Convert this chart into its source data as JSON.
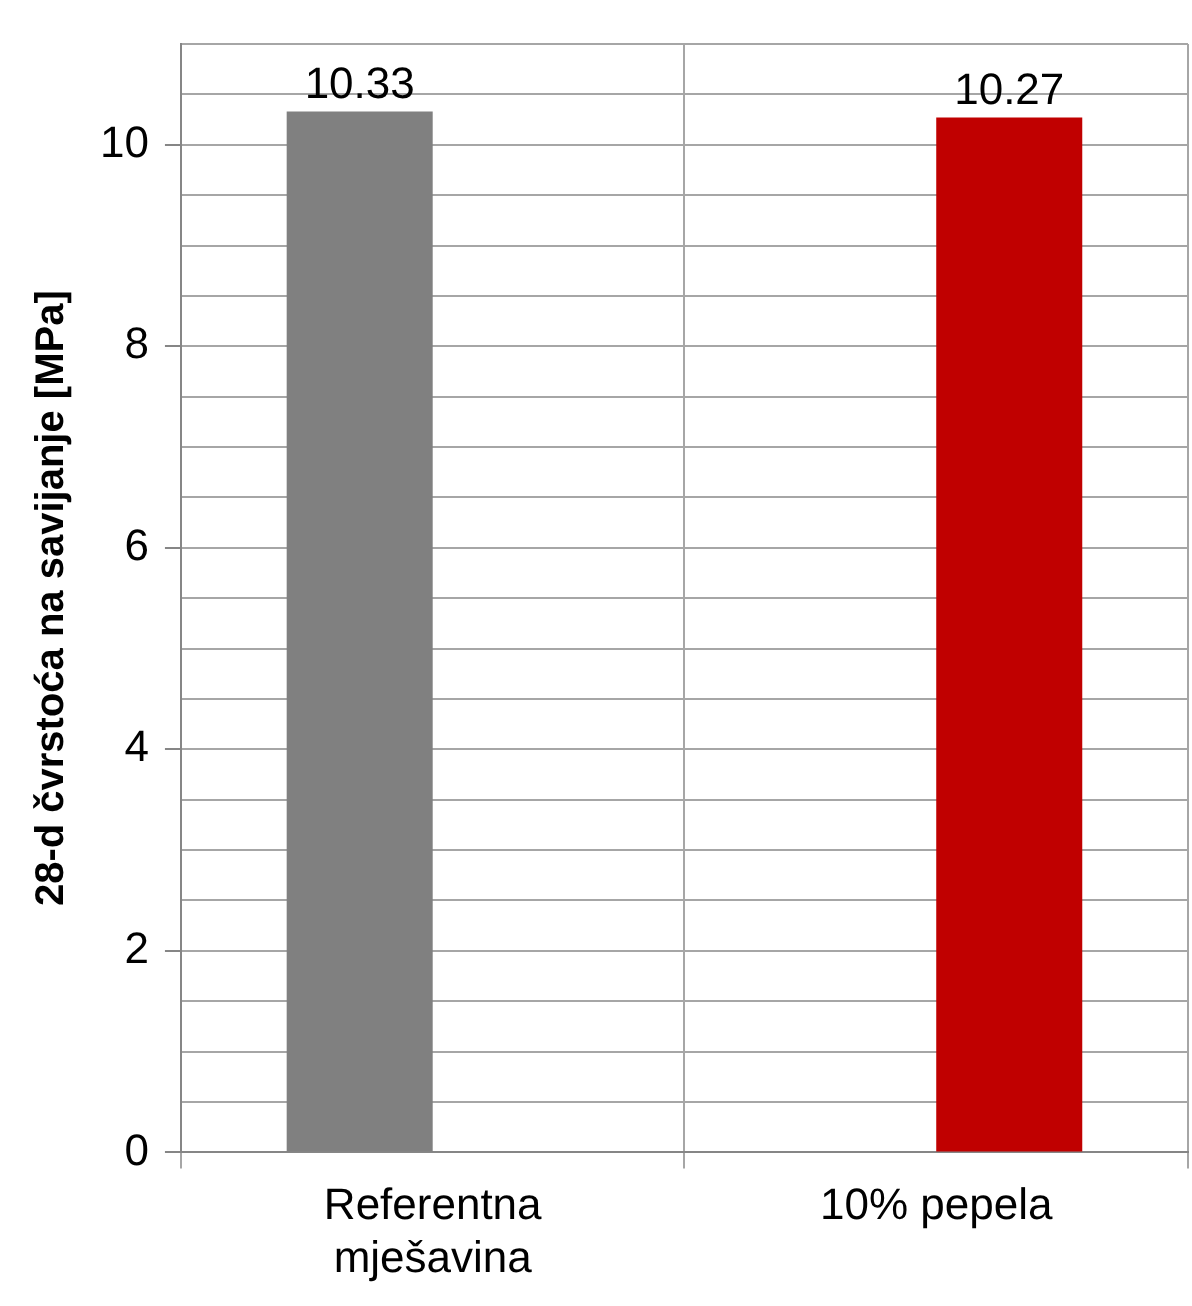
{
  "chart_data": {
    "type": "bar",
    "ylabel": "28-d čvrstoća na savijanje [MPa]",
    "categories": [
      "Referentna mješavina",
      "10% pepela"
    ],
    "series": [
      {
        "color": "#808080",
        "values": [
          10.33,
          null
        ]
      },
      {
        "color": "#c00000",
        "values": [
          null,
          10.27
        ]
      }
    ],
    "ylim": [
      0,
      11
    ],
    "yticks": [
      0,
      {
        "value": 0.5,
        "label": null
      },
      {
        "value": 1,
        "label": null
      },
      {
        "value": 1.5,
        "label": null
      },
      2,
      {
        "value": 2.5,
        "label": null
      },
      {
        "value": 3,
        "label": null
      },
      {
        "value": 3.5,
        "label": null
      },
      4,
      {
        "value": 4.5,
        "label": null
      },
      {
        "value": 5,
        "label": null
      },
      {
        "value": 5.5,
        "label": null
      },
      6,
      {
        "value": 6.5,
        "label": null
      },
      {
        "value": 7,
        "label": null
      },
      {
        "value": 7.5,
        "label": null
      },
      8,
      {
        "value": 8.5,
        "label": null
      },
      {
        "value": 9,
        "label": null
      },
      {
        "value": 9.5,
        "label": null
      },
      10,
      {
        "value": 10.5,
        "label": null
      },
      {
        "value": 11,
        "label": null
      }
    ],
    "grid": true,
    "data_labels": true,
    "legend": false
  }
}
